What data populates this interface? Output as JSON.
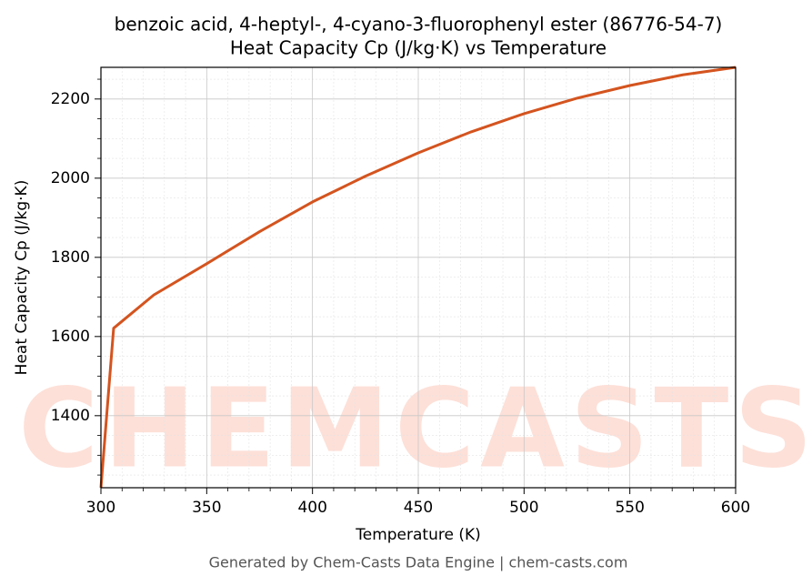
{
  "chart_data": {
    "type": "line",
    "title": "benzoic acid, 4-heptyl-, 4-cyano-3-fluorophenyl ester (86776-54-7)",
    "subtitle": "Heat Capacity Cp (J/kg·K) vs Temperature",
    "x_label": "Temperature (K)",
    "y_label": "Heat Capacity Cp (J/kg·K)",
    "footer": "Generated by Chem-Casts Data Engine | chem-casts.com",
    "watermark": "CHEMCASTS",
    "x": [
      300,
      306,
      325,
      350,
      375,
      400,
      425,
      450,
      475,
      500,
      525,
      550,
      575,
      600
    ],
    "series": [
      {
        "name": "Heat Capacity Cp",
        "color": "#d4541f",
        "values": [
          1218,
          1621,
          1705,
          1784,
          1865,
          1940,
          2005,
          2064,
          2117,
          2163,
          2202,
          2234,
          2261,
          2280
        ]
      }
    ],
    "xlim": [
      300,
      600
    ],
    "ylim": [
      1218,
      2280
    ],
    "xticks": [
      300,
      350,
      400,
      450,
      500,
      550,
      600
    ],
    "yticks": [
      1400,
      1600,
      1800,
      2000,
      2200
    ],
    "xminorticks": [
      310,
      320,
      330,
      340,
      360,
      370,
      380,
      390,
      410,
      420,
      430,
      440,
      460,
      470,
      480,
      490,
      510,
      520,
      530,
      540,
      560,
      570,
      580,
      590
    ],
    "yminorticks": [
      1250,
      1300,
      1350,
      1450,
      1500,
      1550,
      1650,
      1700,
      1750,
      1850,
      1900,
      1950,
      2050,
      2100,
      2150,
      2250
    ],
    "grid": true
  }
}
